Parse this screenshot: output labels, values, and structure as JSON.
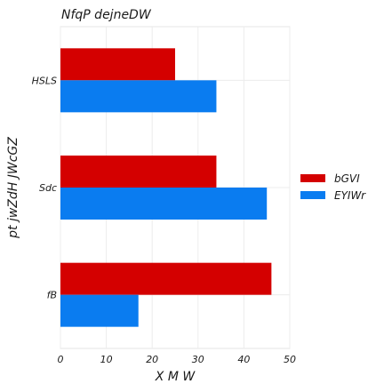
{
  "chart_data": {
    "type": "bar",
    "orientation": "horizontal",
    "title": "NfqP dejneDW",
    "xlabel": "X M W",
    "ylabel": "pt jwZdH JWcGZ",
    "categories": [
      "HSLS",
      "Sdc",
      "fB"
    ],
    "series": [
      {
        "name": "bGVI",
        "values": [
          25,
          34,
          46
        ],
        "color": "#d40000"
      },
      {
        "name": "EYIWr",
        "values": [
          34,
          45,
          17
        ],
        "color": "#0a7cf0"
      }
    ],
    "xlim": [
      0,
      50
    ],
    "xticks": [
      "0",
      "10",
      "20",
      "30",
      "40",
      "50"
    ],
    "grid": true,
    "legend_position": "right"
  }
}
